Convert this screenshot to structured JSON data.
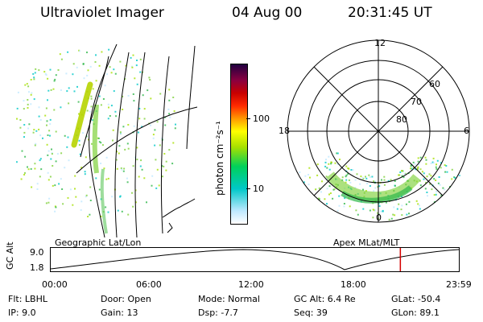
{
  "header": {
    "title": "Ultraviolet Imager",
    "date": "04 Aug 00",
    "time": "20:31:45 UT"
  },
  "colorbar": {
    "unit_label": "photon cm⁻²s⁻¹",
    "ticks": [
      "100",
      "10"
    ]
  },
  "polar": {
    "mlt_labels": [
      "12",
      "18",
      "6",
      "0"
    ],
    "mlat_labels": [
      "60",
      "70",
      "80"
    ]
  },
  "panels": {
    "left_caption": "Geographic Lat/Lon",
    "right_caption": "Apex MLat/MLT"
  },
  "timeline": {
    "ylabel": "GC Alt",
    "y_ticks": [
      "9.0",
      "1.8"
    ],
    "x_ticks": [
      "00:00",
      "06:00",
      "12:00",
      "18:00",
      "23:59"
    ],
    "current_time_fraction": 0.855
  },
  "info": {
    "filter": "Flt: LBHL",
    "door": "Door: Open",
    "mode": "Mode: Normal",
    "gc_alt": "GC Alt: 6.4 Re",
    "glat": "GLat: -50.4",
    "ip": "IP:  9.0",
    "gain": "Gain: 13",
    "dsp": "Dsp:   -7.7",
    "seq": "Seq: 39",
    "glon": "GLon: 89.1"
  },
  "colors": {
    "marker": "#d40000"
  }
}
